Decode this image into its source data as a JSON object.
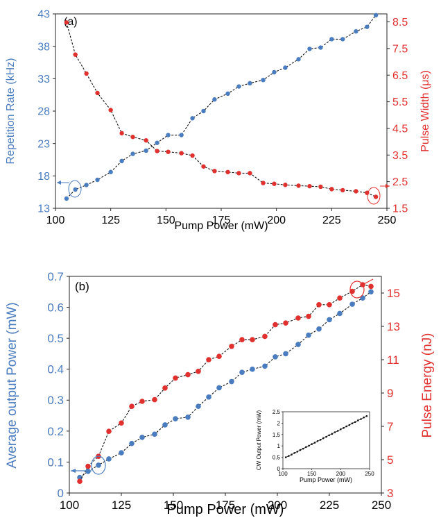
{
  "colors": {
    "blue": "#4a7cc0",
    "red": "#e0312f",
    "line": "#111111",
    "frame": "#222222",
    "inset_marker": "#111111"
  },
  "chart_data": [
    {
      "type": "line",
      "panel_label": "(a)",
      "xlabel": "Pump Power (mW)",
      "x_ticks": [
        "100",
        "125",
        "150",
        "175",
        "200",
        "225",
        "250"
      ],
      "xlim": [
        100,
        250
      ],
      "y_left": {
        "label": "Repetition Rate (kHz)",
        "ticks": [
          "13",
          "18",
          "23",
          "28",
          "33",
          "38",
          "43"
        ],
        "lim": [
          13,
          43
        ]
      },
      "y_right": {
        "label": "Pulse Width (μs)",
        "ticks": [
          "1.5",
          "2.5",
          "3.5",
          "4.5",
          "5.5",
          "6.5",
          "7.5",
          "8.5"
        ],
        "lim": [
          1.5,
          8.8
        ]
      },
      "series": [
        {
          "axis": "left",
          "x": [
            105,
            109,
            114,
            119,
            125,
            130,
            135,
            141,
            146,
            151,
            157,
            162,
            167,
            172,
            178,
            183,
            188,
            194,
            199,
            204,
            210,
            215,
            220,
            225,
            230,
            236,
            241,
            245
          ],
          "values": [
            14.5,
            15.9,
            16.6,
            17.4,
            18.6,
            20.3,
            21.4,
            21.9,
            23.1,
            24.3,
            24.3,
            26.9,
            28.0,
            29.8,
            30.7,
            31.8,
            32.3,
            32.8,
            34.0,
            34.7,
            36.0,
            37.6,
            37.8,
            39.1,
            39.1,
            40.3,
            41.0,
            42.8
          ]
        },
        {
          "axis": "right",
          "x": [
            105,
            109,
            114,
            119,
            125,
            130,
            135,
            141,
            146,
            151,
            157,
            162,
            167,
            172,
            178,
            183,
            188,
            194,
            199,
            204,
            210,
            215,
            220,
            225,
            230,
            236,
            241,
            245
          ],
          "values": [
            8.48,
            7.27,
            6.56,
            5.83,
            5.19,
            4.32,
            4.18,
            4.05,
            3.65,
            3.62,
            3.57,
            3.48,
            3.07,
            2.9,
            2.86,
            2.82,
            2.82,
            2.45,
            2.42,
            2.38,
            2.35,
            2.33,
            2.31,
            2.22,
            2.18,
            2.14,
            2.08,
            1.93
          ]
        }
      ]
    },
    {
      "type": "line",
      "panel_label": "(b)",
      "xlabel": "Pump Power (mW)",
      "x_ticks": [
        "100",
        "125",
        "150",
        "175",
        "200",
        "225",
        "250"
      ],
      "xlim": [
        100,
        250
      ],
      "y_left": {
        "label": "Average output Power (mW)",
        "ticks": [
          "0",
          "0.1",
          "0.2",
          "0.3",
          "0.4",
          "0.5",
          "0.6",
          "0.7"
        ],
        "lim": [
          0,
          0.7
        ]
      },
      "y_right": {
        "label": "Pulse Energy (nJ)",
        "ticks": [
          "3",
          "5",
          "7",
          "9",
          "11",
          "13",
          "15"
        ],
        "lim": [
          3,
          16
        ]
      },
      "series": [
        {
          "axis": "left",
          "x": [
            105,
            109,
            114,
            119,
            125,
            130,
            135,
            141,
            146,
            151,
            157,
            162,
            167,
            172,
            178,
            183,
            188,
            194,
            199,
            204,
            210,
            215,
            220,
            225,
            230,
            236,
            241,
            245
          ],
          "values": [
            0.05,
            0.07,
            0.09,
            0.11,
            0.13,
            0.16,
            0.18,
            0.19,
            0.22,
            0.24,
            0.245,
            0.28,
            0.31,
            0.34,
            0.36,
            0.39,
            0.4,
            0.41,
            0.44,
            0.45,
            0.48,
            0.51,
            0.53,
            0.56,
            0.58,
            0.61,
            0.63,
            0.65
          ]
        },
        {
          "axis": "right",
          "x": [
            105,
            109,
            114,
            119,
            125,
            130,
            135,
            141,
            146,
            151,
            157,
            162,
            167,
            172,
            178,
            183,
            188,
            194,
            199,
            204,
            210,
            215,
            220,
            225,
            230,
            236,
            241,
            245
          ],
          "values": [
            3.7,
            4.6,
            5.2,
            6.7,
            7.2,
            8.2,
            8.5,
            8.6,
            9.3,
            9.9,
            10.1,
            10.3,
            11.0,
            11.2,
            11.8,
            12.2,
            12.2,
            12.4,
            13.1,
            13.2,
            13.5,
            13.6,
            14.3,
            14.3,
            14.7,
            15.1,
            15.5,
            15.4
          ]
        }
      ]
    }
  ],
  "inset": {
    "type": "line",
    "ylabel": "CW Output Power (mW)",
    "xlabel": "Pump Power (mW)",
    "x_ticks": [
      "100",
      "150",
      "200",
      "250"
    ],
    "y_ticks": [
      "0",
      "0.5",
      "1",
      "1.5",
      "2",
      "2.5"
    ],
    "xlim": [
      100,
      250
    ],
    "ylim": [
      0,
      2.5
    ],
    "x": [
      105,
      110,
      115,
      120,
      125,
      130,
      135,
      140,
      145,
      150,
      155,
      160,
      165,
      170,
      175,
      180,
      185,
      190,
      195,
      200,
      205,
      210,
      215,
      220,
      225,
      230,
      235,
      240,
      245
    ],
    "values": [
      0.5,
      0.56,
      0.62,
      0.69,
      0.75,
      0.82,
      0.88,
      0.95,
      1.01,
      1.08,
      1.14,
      1.21,
      1.27,
      1.34,
      1.4,
      1.47,
      1.53,
      1.6,
      1.66,
      1.73,
      1.79,
      1.86,
      1.92,
      1.99,
      2.05,
      2.12,
      2.18,
      2.25,
      2.31
    ]
  }
}
